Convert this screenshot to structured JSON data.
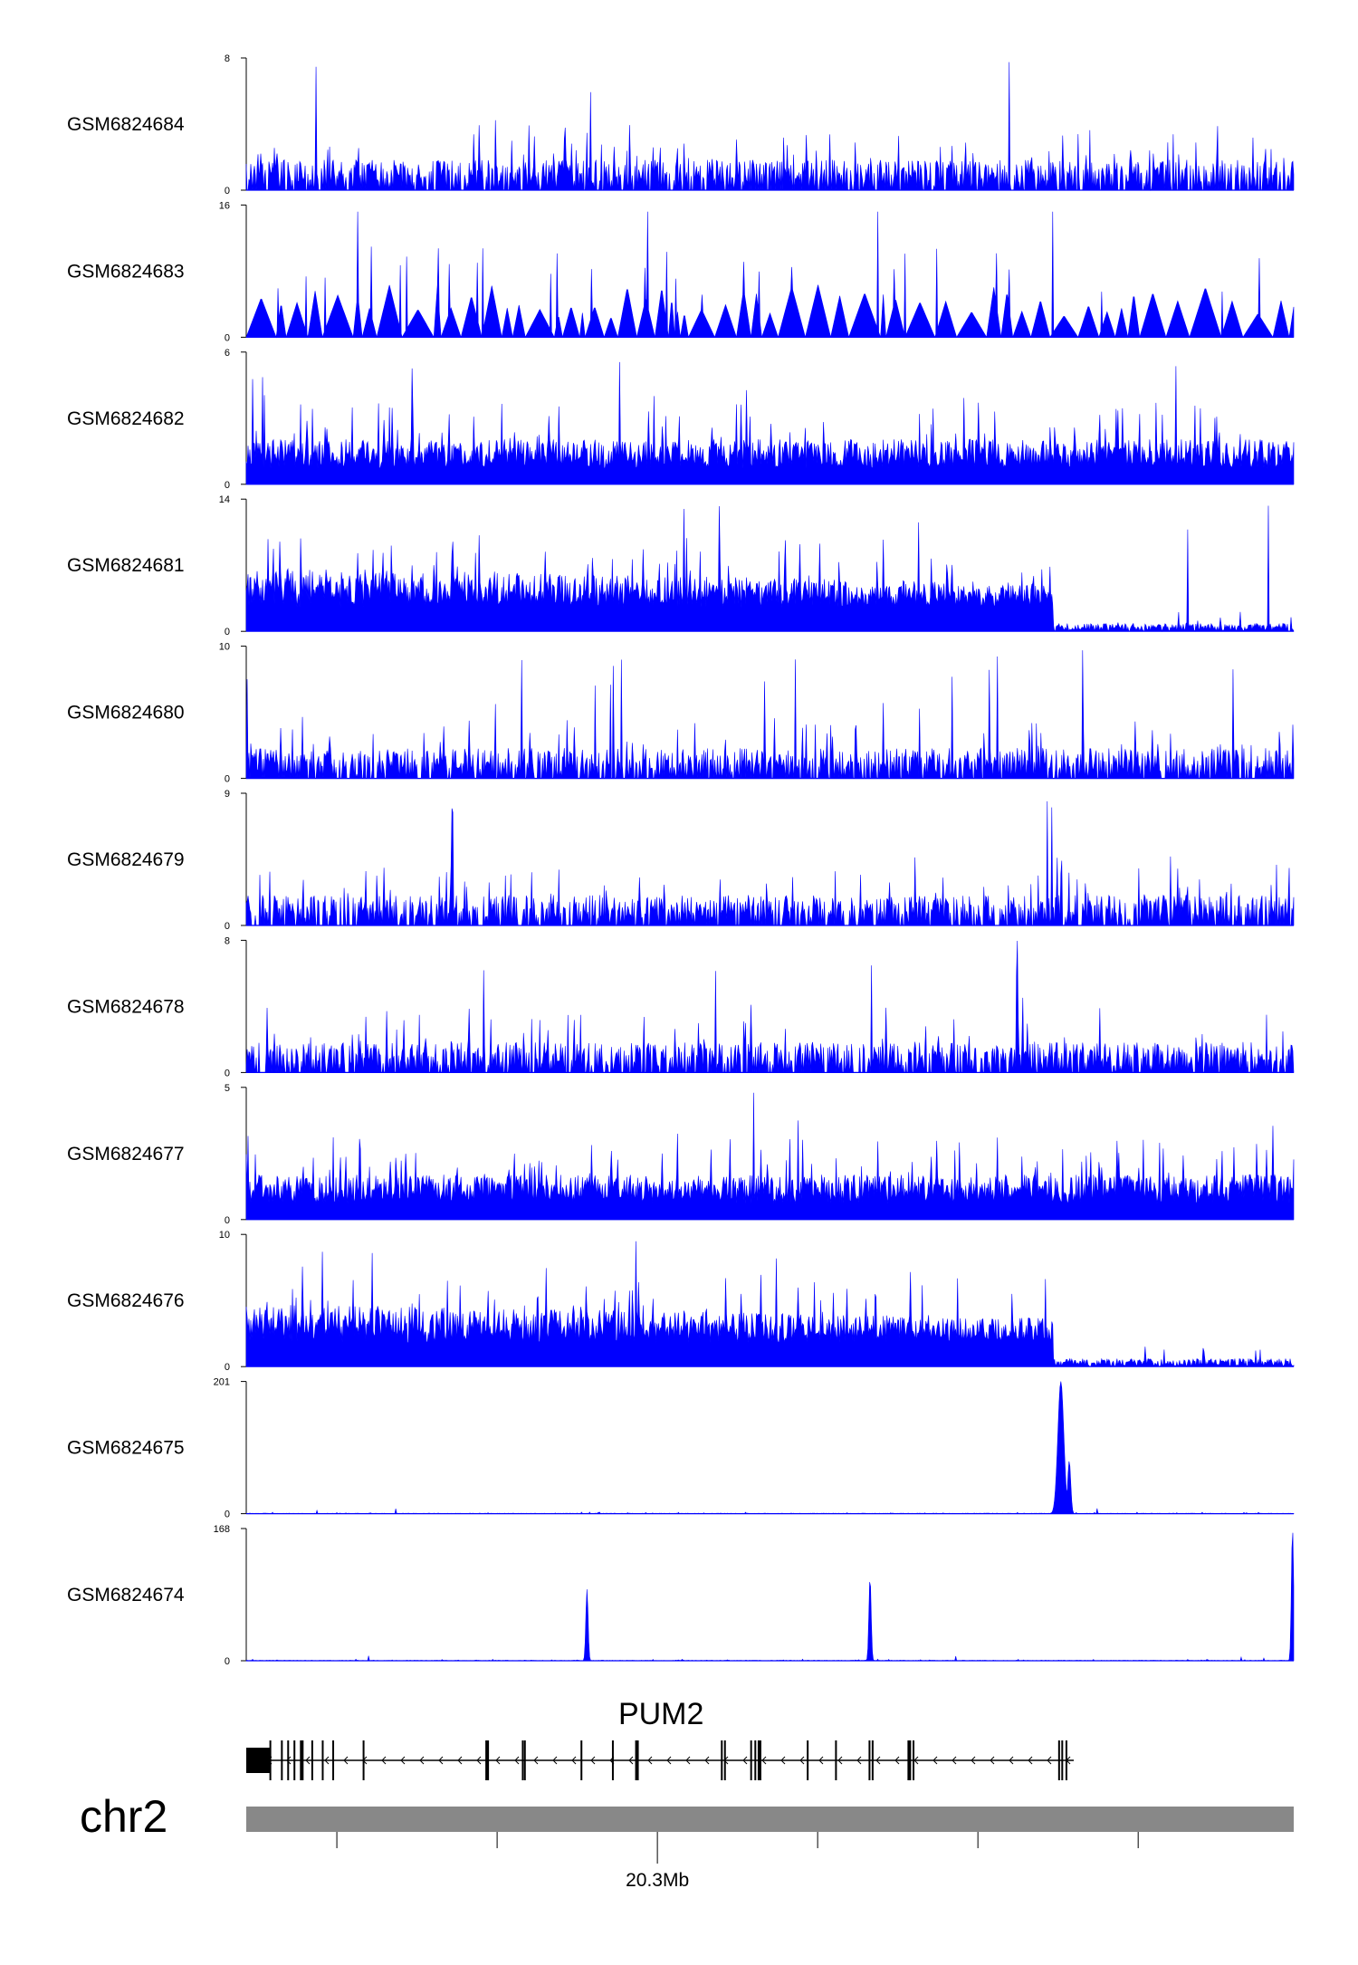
{
  "chart_data": {
    "type": "area",
    "series_color": "#0000ff",
    "tracks": [
      {
        "name": "GSM6824684",
        "ymax": 8,
        "ymin": 0,
        "profile": "uniform"
      },
      {
        "name": "GSM6824683",
        "ymax": 16,
        "ymin": 0,
        "profile": "triangles"
      },
      {
        "name": "GSM6824682",
        "ymax": 6,
        "ymin": 0,
        "profile": "dense"
      },
      {
        "name": "GSM6824681",
        "ymax": 14,
        "ymin": 0,
        "profile": "dropoff"
      },
      {
        "name": "GSM6824680",
        "ymax": 10,
        "ymin": 0,
        "profile": "uniform"
      },
      {
        "name": "GSM6824679",
        "ymax": 9,
        "ymin": 0,
        "profile": "uniform"
      },
      {
        "name": "GSM6824678",
        "ymax": 8,
        "ymin": 0,
        "profile": "uniform"
      },
      {
        "name": "GSM6824677",
        "ymax": 5,
        "ymin": 0,
        "profile": "dense"
      },
      {
        "name": "GSM6824676",
        "ymax": 10,
        "ymin": 0,
        "profile": "dropoff"
      },
      {
        "name": "GSM6824675",
        "ymax": 201,
        "ymin": 0,
        "profile": "peaks",
        "peaks": [
          {
            "x": 0.777,
            "height": 1.0,
            "width": 0.004
          },
          {
            "x": 0.785,
            "height": 0.4,
            "width": 0.002
          }
        ]
      },
      {
        "name": "GSM6824674",
        "ymax": 168,
        "ymin": 0,
        "profile": "peaks",
        "peaks": [
          {
            "x": 0.325,
            "height": 0.54,
            "width": 0.0015
          },
          {
            "x": 0.595,
            "height": 0.63,
            "width": 0.0015
          },
          {
            "x": 0.998,
            "height": 1.0,
            "width": 0.0015
          }
        ]
      }
    ],
    "gene": {
      "name": "PUM2",
      "strand": "-",
      "start_frac": 0.0,
      "end_frac": 0.79,
      "exons_frac": [
        0.0,
        0.023,
        0.034,
        0.04,
        0.046,
        0.053,
        0.063,
        0.073,
        0.083,
        0.112,
        0.23,
        0.264,
        0.266,
        0.32,
        0.35,
        0.373,
        0.454,
        0.457,
        0.482,
        0.486,
        0.49,
        0.536,
        0.563,
        0.595,
        0.598,
        0.633,
        0.637,
        0.776,
        0.779,
        0.783
      ]
    },
    "chromosome": "chr2",
    "xaxis": {
      "labeled_tick": "20.3Mb",
      "ticks_frac": [
        0.0865,
        0.2395,
        0.3925,
        0.5455,
        0.6985,
        0.8515
      ],
      "labeled_tick_index": 2
    }
  }
}
